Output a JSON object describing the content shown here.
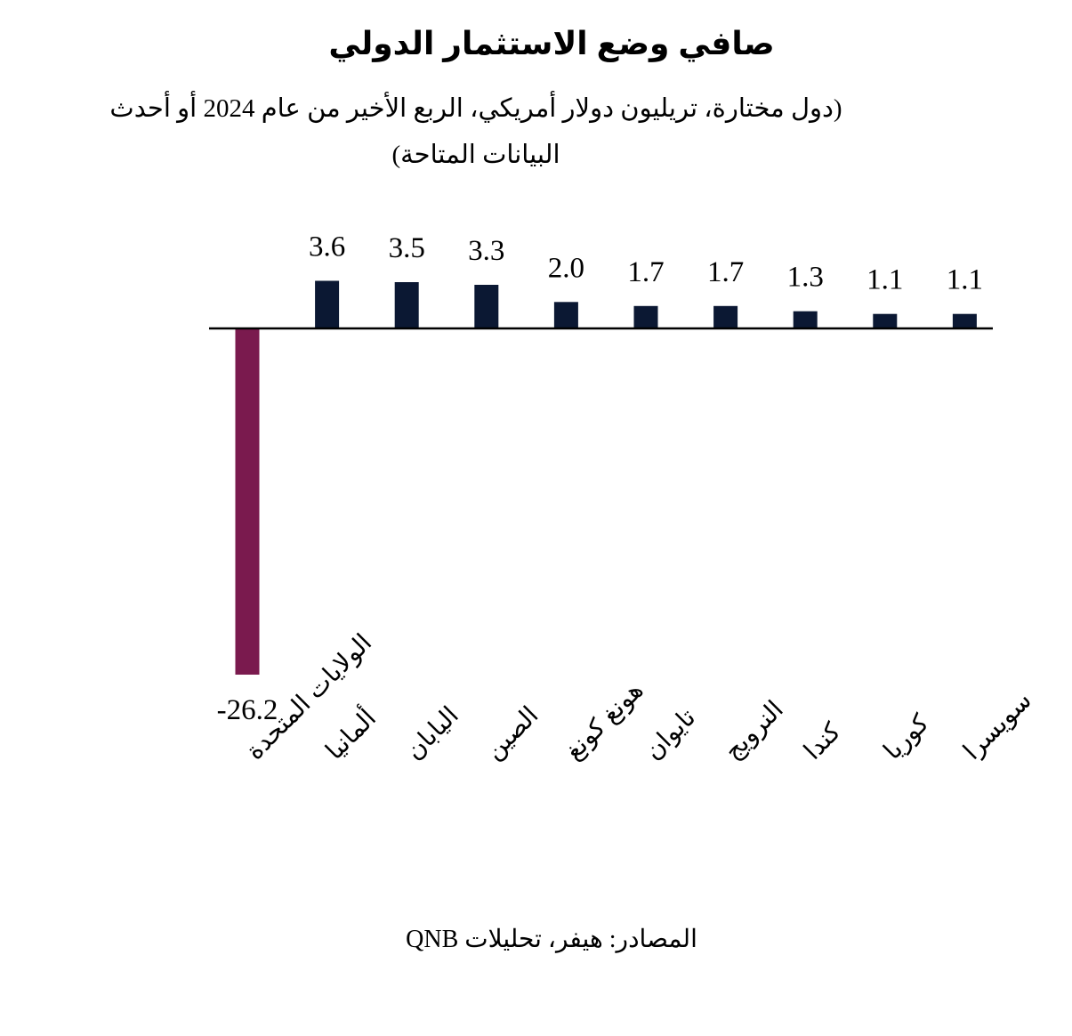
{
  "chart_data": {
    "type": "bar",
    "title": "صافي وضع الاستثمار الدولي",
    "subtitle": "(دول مختارة، تريليون دولار أمريكي، الربع الأخير من عام 2024 أو أحدث البيانات المتاحة)",
    "source": "المصادر: هيفر، تحليلات QNB",
    "categories": [
      "الولايات المتحدة",
      "ألمانيا",
      "اليابان",
      "الصين",
      "هونغ كونغ",
      "تايوان",
      "النرويج",
      "كندا",
      "كوريا",
      "سويسرا"
    ],
    "values": [
      -26.2,
      3.6,
      3.5,
      3.3,
      2.0,
      1.7,
      1.7,
      1.3,
      1.1,
      1.1
    ],
    "value_labels": [
      "-26.2",
      "3.6",
      "3.5",
      "3.3",
      "2.0",
      "1.7",
      "1.7",
      "1.3",
      "1.1",
      "1.1"
    ],
    "colors": {
      "negative": "#7a1a4e",
      "positive": "#0b1833"
    },
    "grid": false,
    "legend": "none"
  }
}
